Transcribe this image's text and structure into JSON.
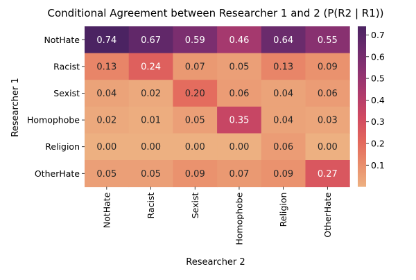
{
  "chart_data": {
    "type": "heatmap",
    "title": "Conditional Agreement between Researcher 1 and 2 (P(R2 | R1))",
    "xlabel": "Researcher 2",
    "ylabel": "Researcher 1",
    "x_categories": [
      "NotHate",
      "Racist",
      "Sexist",
      "Homophobe",
      "Religion",
      "OtherHate"
    ],
    "y_categories": [
      "NotHate",
      "Racist",
      "Sexist",
      "Homophobe",
      "Religion",
      "OtherHate"
    ],
    "values": [
      [
        0.74,
        0.67,
        0.59,
        0.46,
        0.64,
        0.55
      ],
      [
        0.13,
        0.24,
        0.07,
        0.05,
        0.13,
        0.09
      ],
      [
        0.04,
        0.02,
        0.2,
        0.06,
        0.04,
        0.06
      ],
      [
        0.02,
        0.01,
        0.05,
        0.35,
        0.04,
        0.03
      ],
      [
        0.0,
        0.0,
        0.0,
        0.0,
        0.06,
        0.0
      ],
      [
        0.05,
        0.05,
        0.09,
        0.07,
        0.09,
        0.27
      ]
    ],
    "value_labels": [
      [
        "0.74",
        "0.67",
        "0.59",
        "0.46",
        "0.64",
        "0.55"
      ],
      [
        "0.13",
        "0.24",
        "0.07",
        "0.05",
        "0.13",
        "0.09"
      ],
      [
        "0.04",
        "0.02",
        "0.20",
        "0.06",
        "0.04",
        "0.06"
      ],
      [
        "0.02",
        "0.01",
        "0.05",
        "0.35",
        "0.04",
        "0.03"
      ],
      [
        "0.00",
        "0.00",
        "0.00",
        "0.00",
        "0.06",
        "0.00"
      ],
      [
        "0.05",
        "0.05",
        "0.09",
        "0.07",
        "0.09",
        "0.27"
      ]
    ],
    "colorbar": {
      "range": [
        0.0,
        0.74
      ],
      "ticks": [
        0.1,
        0.2,
        0.3,
        0.4,
        0.5,
        0.6,
        0.7
      ],
      "tick_labels": [
        "0.1",
        "0.2",
        "0.3",
        "0.4",
        "0.5",
        "0.6",
        "0.7"
      ],
      "colormap": "flare"
    },
    "colors": [
      "#edb081",
      "#e98d6b",
      "#e3685c",
      "#d14a61",
      "#b13c6c",
      "#8f3371",
      "#6c2b6d",
      "#4b2362"
    ]
  }
}
